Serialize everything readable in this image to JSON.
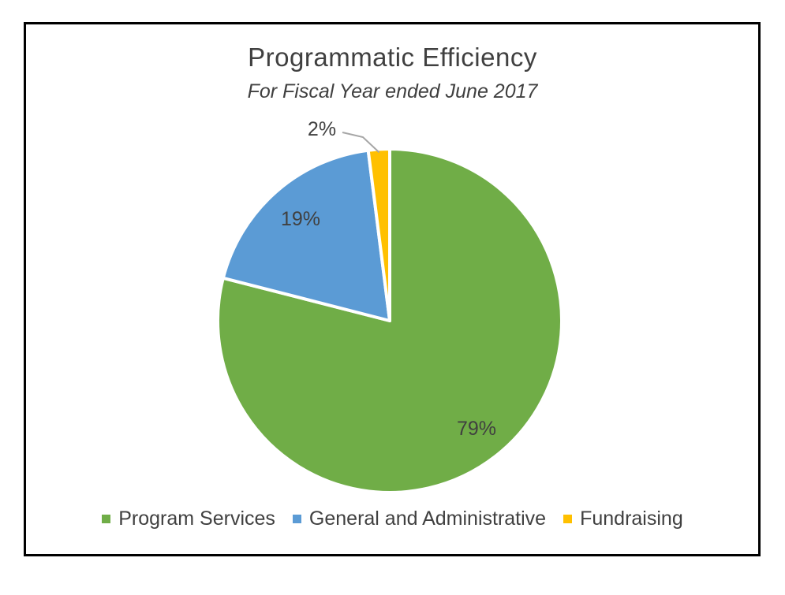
{
  "chart_data": {
    "type": "pie",
    "title": "Programmatic Efficiency",
    "subtitle": "For Fiscal Year ended June 2017",
    "categories": [
      "Program Services",
      "General and Administrative",
      "Fundraising"
    ],
    "values": [
      79,
      19,
      2
    ],
    "value_labels": [
      "79%",
      "19%",
      "2%"
    ],
    "colors": [
      "#70ad47",
      "#5b9bd5",
      "#ffc000"
    ],
    "legend_position": "bottom",
    "start_angle": "12 o'clock",
    "direction": "clockwise"
  }
}
